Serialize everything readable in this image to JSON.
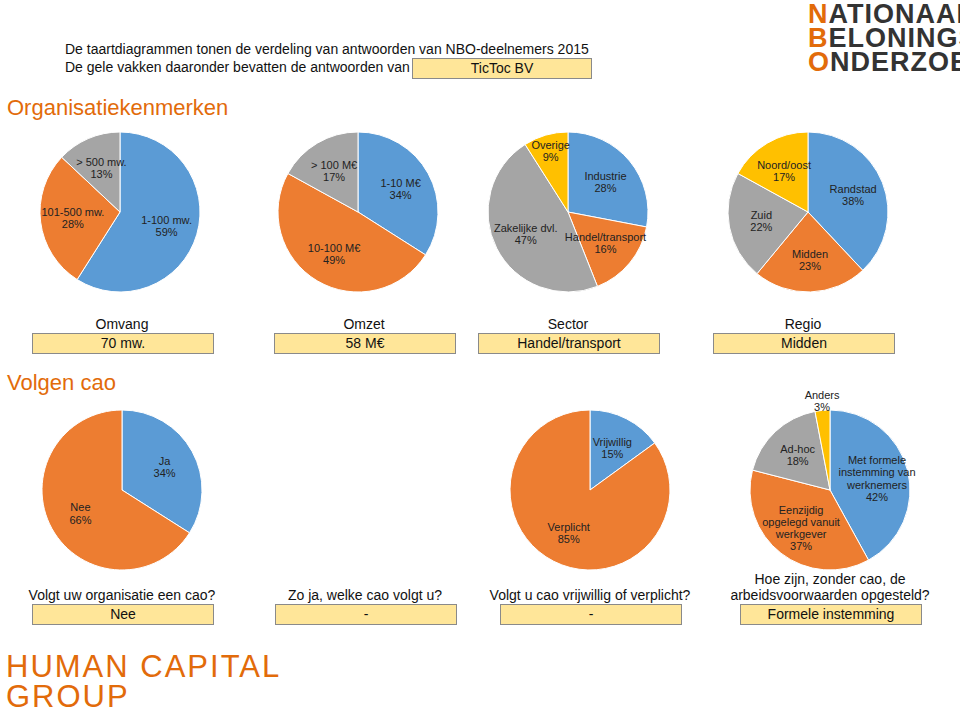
{
  "header": {
    "line1": "De taartdiagrammen tonen de verdeling van antwoorden van NBO-deelnemers 2015",
    "line2": "De gele vakken daaronder bevatten de antwoorden van",
    "company": "TicToc BV",
    "logo": [
      "NATIONAAL",
      "BELONINGS",
      "ONDERZOEK"
    ],
    "footer_logo": [
      "HUMAN CAPITAL",
      "GROUP"
    ]
  },
  "sections": [
    "Organisatiekenmerken",
    "Volgen cao"
  ],
  "chart_data": [
    {
      "type": "pie",
      "title": "Omvang",
      "answer": "70 mw.",
      "categories": [
        "1-100 mw.",
        "101-500 mw.",
        "> 500 mw."
      ],
      "values": [
        59,
        28,
        13
      ],
      "value_labels": [
        "59%",
        "28%",
        "13%"
      ],
      "colors": [
        "#5b9bd5",
        "#ed7d31",
        "#a5a5a5"
      ],
      "data_labels": true
    },
    {
      "type": "pie",
      "title": "Omzet",
      "answer": "58 M€",
      "categories": [
        "1-10 M€",
        "10-100 M€",
        "> 100 M€"
      ],
      "values": [
        34,
        49,
        17
      ],
      "value_labels": [
        "34%",
        "49%",
        "17%"
      ],
      "colors": [
        "#5b9bd5",
        "#ed7d31",
        "#a5a5a5"
      ],
      "data_labels": true
    },
    {
      "type": "pie",
      "title": "Sector",
      "answer": "Handel/transport",
      "categories": [
        "Industrie",
        "Handel/transport",
        "Zakelijke dvl.",
        "Overige"
      ],
      "values": [
        28,
        16,
        47,
        9
      ],
      "value_labels": [
        "28%",
        "16%",
        "47%",
        "9%"
      ],
      "colors": [
        "#5b9bd5",
        "#ed7d31",
        "#a5a5a5",
        "#ffc000"
      ],
      "data_labels": true
    },
    {
      "type": "pie",
      "title": "Regio",
      "answer": "Midden",
      "categories": [
        "Randstad",
        "Midden",
        "Zuid",
        "Noord/oost"
      ],
      "values": [
        38,
        23,
        22,
        17
      ],
      "value_labels": [
        "38%",
        "23%",
        "22%",
        "17%"
      ],
      "colors": [
        "#5b9bd5",
        "#ed7d31",
        "#a5a5a5",
        "#ffc000"
      ],
      "data_labels": true
    },
    {
      "type": "pie",
      "title": "Volgt uw organisatie een cao?",
      "answer": "Nee",
      "categories": [
        "Ja",
        "Nee"
      ],
      "values": [
        34,
        66
      ],
      "value_labels": [
        "34%",
        "66%"
      ],
      "colors": [
        "#5b9bd5",
        "#ed7d31"
      ],
      "data_labels": true
    },
    {
      "type": "pie",
      "title": "Volgt u cao vrijwillig of verplicht?",
      "answer": "-",
      "categories": [
        "Vrijwillig",
        "Verplicht"
      ],
      "values": [
        15,
        85
      ],
      "value_labels": [
        "15%",
        "85%"
      ],
      "colors": [
        "#5b9bd5",
        "#ed7d31"
      ],
      "data_labels": true
    },
    {
      "type": "pie",
      "title": "Hoe zijn, zonder cao, de arbeidsvoorwaarden opgesteld?",
      "answer": "Formele instemming",
      "categories": [
        "Met formele instemming van werknemers",
        "Eenzijdig opgelegd vanuit werkgever",
        "Ad-hoc",
        "Anders"
      ],
      "values": [
        42,
        37,
        18,
        3
      ],
      "value_labels": [
        "42%",
        "37%",
        "18%",
        "3%"
      ],
      "colors": [
        "#5b9bd5",
        "#ed7d31",
        "#a5a5a5",
        "#ffc000"
      ],
      "data_labels": true
    }
  ],
  "extra_questions": [
    {
      "title": "Zo ja, welke cao volgt u?",
      "answer": "-"
    }
  ]
}
